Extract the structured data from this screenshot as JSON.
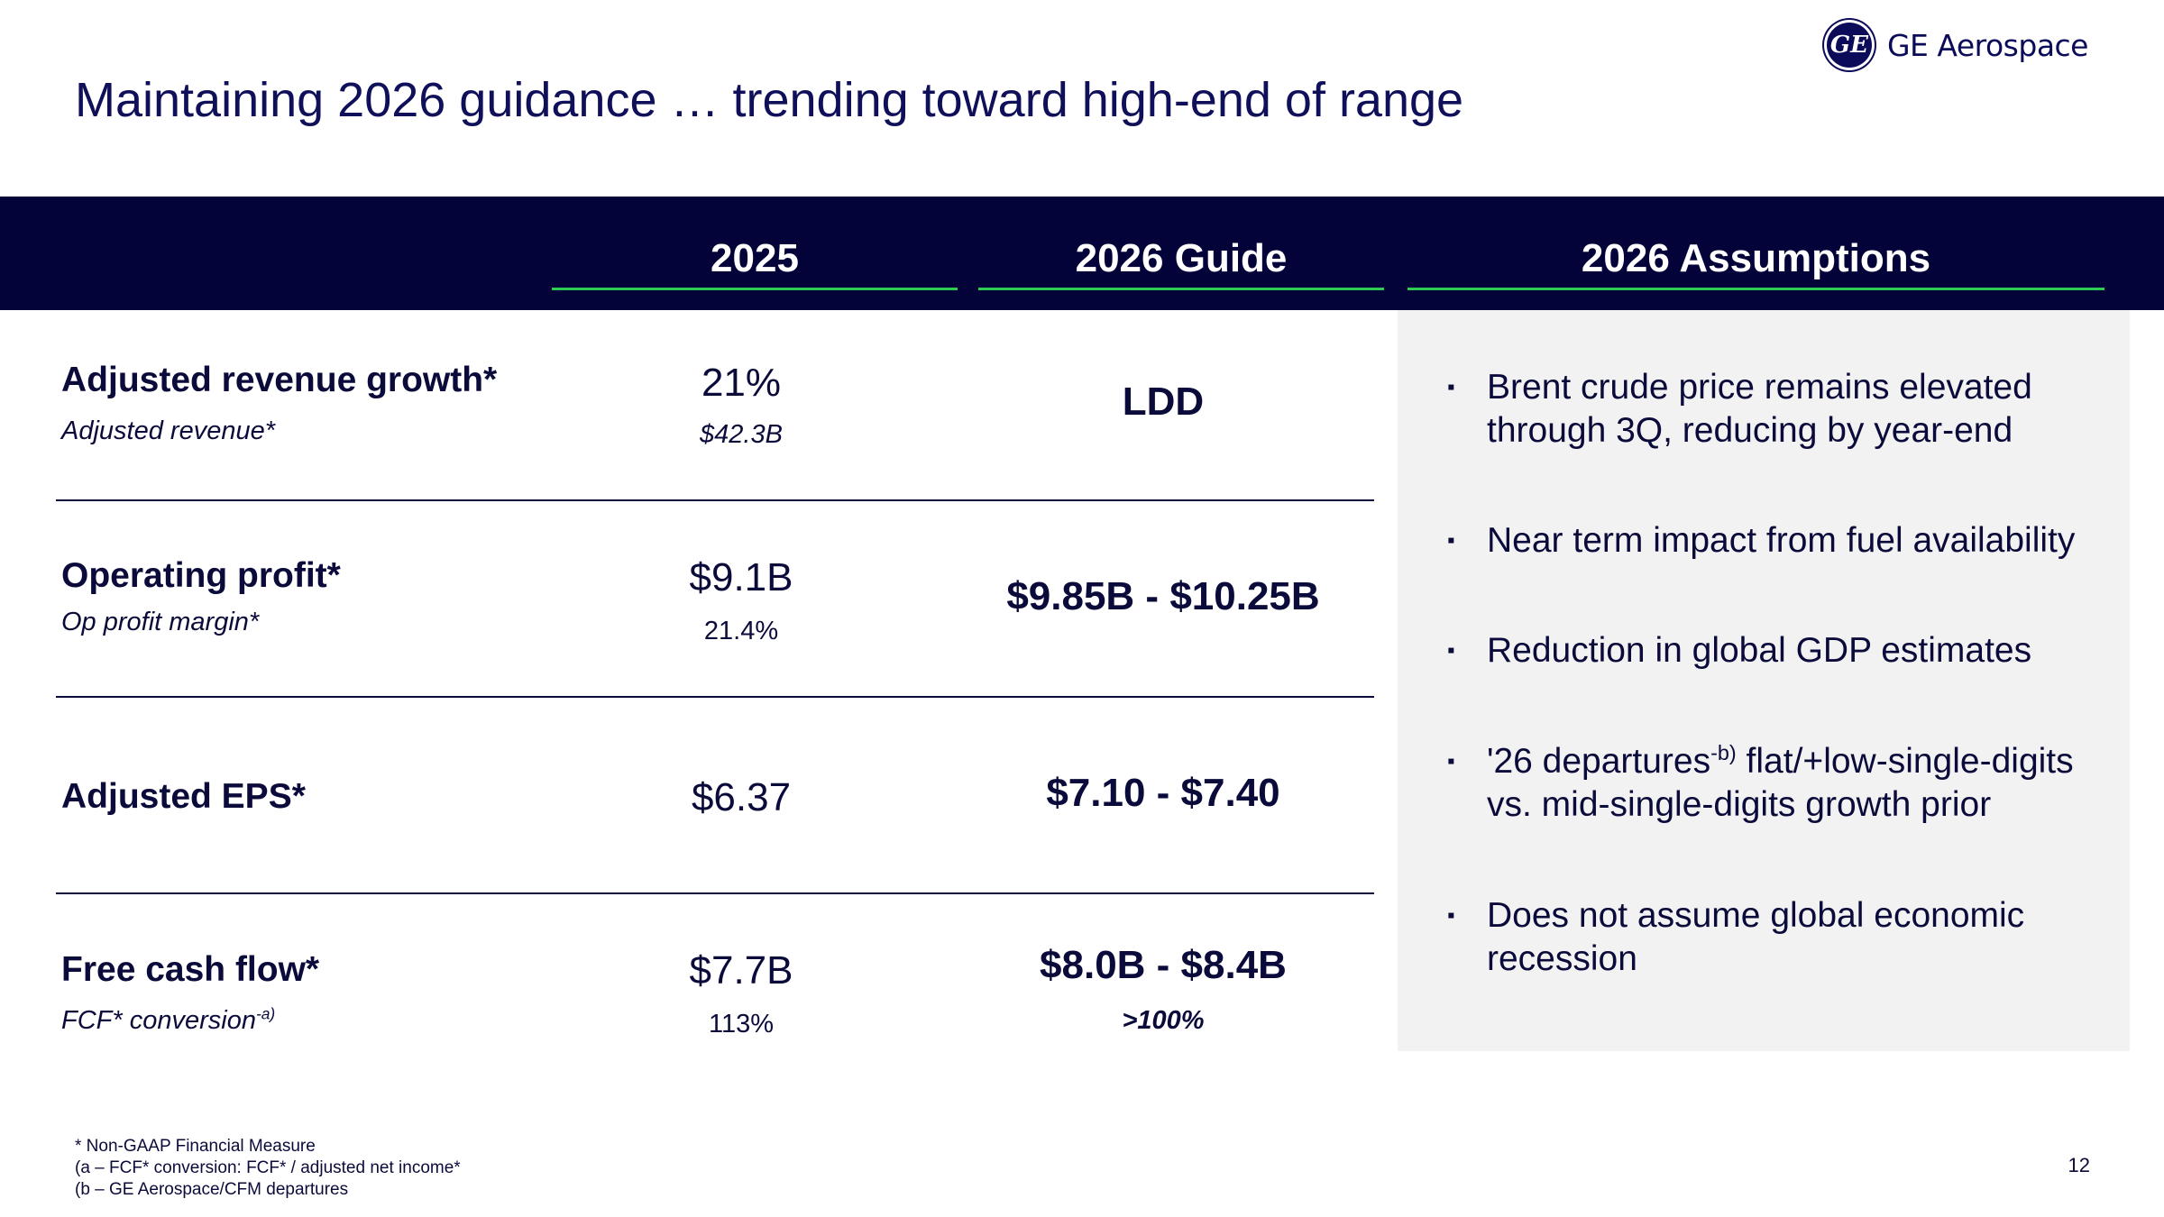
{
  "title": "Maintaining 2026 guidance … trending toward high-end of range",
  "logo": {
    "text": "GE Aerospace",
    "icon": "ge-monogram-icon"
  },
  "columns": {
    "year": "2025",
    "guide": "2026 Guide",
    "assumptions": "2026 Assumptions"
  },
  "rows": [
    {
      "label": "Adjusted revenue growth*",
      "sublabel": "Adjusted revenue*",
      "value": "21%",
      "subvalue": "$42.3B",
      "guide": "LDD",
      "guide_sub": ""
    },
    {
      "label": "Operating profit*",
      "sublabel": "Op profit margin*",
      "value": "$9.1B",
      "subvalue": "21.4%",
      "guide": "$9.85B - $10.25B",
      "guide_sub": ""
    },
    {
      "label": "Adjusted EPS*",
      "sublabel": "",
      "value": "$6.37",
      "subvalue": "",
      "guide": "$7.10 - $7.40",
      "guide_sub": ""
    },
    {
      "label": "Free cash flow*",
      "sublabel": "FCF* conversion",
      "sublabel_sup": "-a)",
      "value": "$7.7B",
      "subvalue": "113%",
      "guide": "$8.0B - $8.4B",
      "guide_sub": ">100%"
    }
  ],
  "assumptions": {
    "bullet": "▪",
    "items": [
      {
        "text": "Brent crude price remains elevated through 3Q, reducing by year-end"
      },
      {
        "text": "Near term impact from fuel availability"
      },
      {
        "text": "Reduction in global GDP estimates"
      },
      {
        "text_before": "'26 departures",
        "sup": "-b)",
        "text_after": " flat/+low-single-digits vs. mid-single-digits growth prior"
      },
      {
        "text": "Does not assume global economic recession"
      }
    ]
  },
  "footnotes": [
    "* Non-GAAP Financial Measure",
    "(a – FCF* conversion: FCF* / adjusted net income*",
    "(b – GE Aerospace/CFM departures"
  ],
  "page_number": "12",
  "colors": {
    "navy": "#03033a",
    "accent_green": "#2ecc52",
    "panel_gray": "#f2f2f2",
    "text": "#0b0b3b"
  }
}
